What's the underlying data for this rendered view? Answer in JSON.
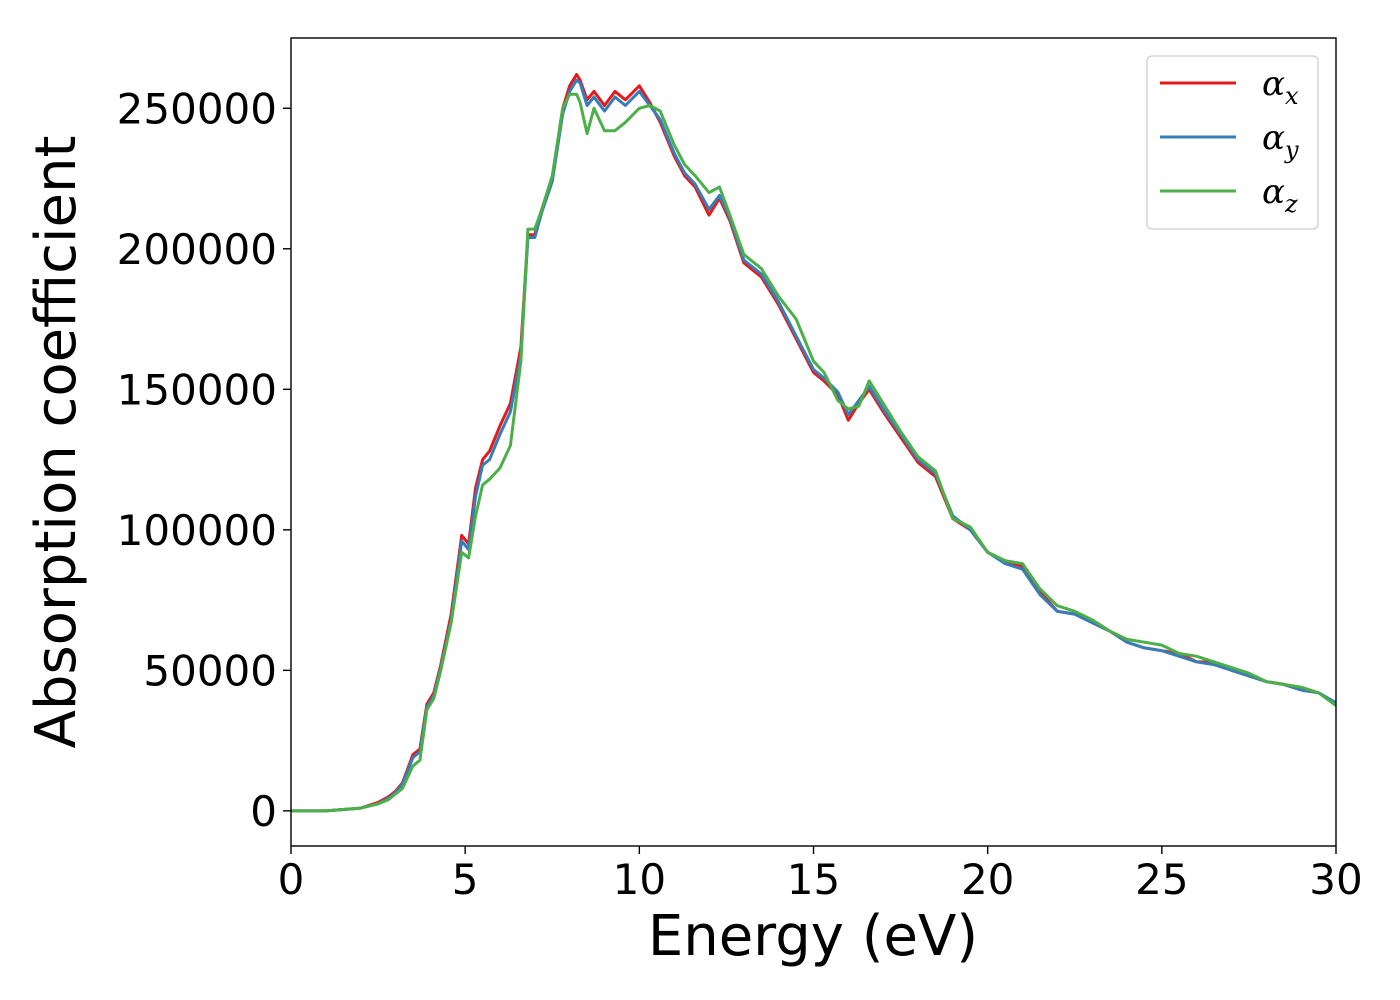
{
  "chart_data": {
    "type": "line",
    "xlabel": "Energy (eV)",
    "ylabel": "Absorption coefficient",
    "xlim": [
      0,
      30
    ],
    "ylim": [
      -12500,
      275000
    ],
    "x_ticks": [
      0,
      5,
      10,
      15,
      20,
      25,
      30
    ],
    "x_tick_labels": [
      "0",
      "5",
      "10",
      "15",
      "20",
      "25",
      "30"
    ],
    "y_ticks": [
      0,
      50000,
      100000,
      150000,
      200000,
      250000
    ],
    "y_tick_labels": [
      "0",
      "50000",
      "100000",
      "150000",
      "200000",
      "250000"
    ],
    "grid": false,
    "legend_position": "top-right",
    "series": [
      {
        "name": "α",
        "subscript": "x",
        "color": "#e41a1c",
        "x": [
          0,
          0.5,
          1,
          1.5,
          2,
          2.5,
          2.8,
          3,
          3.2,
          3.5,
          3.7,
          3.9,
          4.1,
          4.3,
          4.6,
          4.9,
          5.1,
          5.3,
          5.5,
          5.7,
          6,
          6.3,
          6.6,
          6.8,
          7,
          7.2,
          7.5,
          7.8,
          8,
          8.2,
          8.3,
          8.5,
          8.7,
          9,
          9.3,
          9.6,
          10,
          10.3,
          10.6,
          11,
          11.3,
          11.6,
          12,
          12.3,
          12.6,
          13,
          13.5,
          14,
          14.5,
          15,
          15.3,
          15.7,
          16,
          16.3,
          16.6,
          17,
          17.5,
          18,
          18.5,
          19,
          19.5,
          20,
          20.5,
          21,
          21.5,
          22,
          22.5,
          23,
          23.5,
          24,
          24.5,
          25,
          25.5,
          26,
          26.5,
          27,
          27.5,
          28,
          28.5,
          29,
          29.5,
          30
        ],
        "values": [
          0,
          0,
          0,
          500,
          1000,
          3000,
          5000,
          7000,
          10000,
          20000,
          22000,
          38000,
          42000,
          52000,
          70000,
          98000,
          95000,
          115000,
          125000,
          128000,
          137000,
          145000,
          165000,
          205000,
          205000,
          214000,
          225000,
          250000,
          258000,
          262000,
          260000,
          253000,
          256000,
          251000,
          256000,
          253000,
          258000,
          252000,
          245000,
          233000,
          226000,
          222000,
          212000,
          218000,
          210000,
          195000,
          190000,
          180000,
          168000,
          156000,
          153000,
          148000,
          139000,
          145000,
          150000,
          142000,
          133000,
          124000,
          119000,
          104000,
          100000,
          92000,
          89000,
          87000,
          78000,
          71000,
          70000,
          67000,
          64000,
          60000,
          58000,
          57000,
          56000,
          53000,
          53000,
          50000,
          48000,
          46000,
          45000,
          43000,
          42000,
          38000
        ]
      },
      {
        "name": "α",
        "subscript": "y",
        "color": "#377eb8",
        "x": [
          0,
          0.5,
          1,
          1.5,
          2,
          2.5,
          2.8,
          3,
          3.2,
          3.5,
          3.7,
          3.9,
          4.1,
          4.3,
          4.6,
          4.9,
          5.1,
          5.3,
          5.5,
          5.7,
          6,
          6.3,
          6.6,
          6.8,
          7,
          7.2,
          7.5,
          7.8,
          8,
          8.2,
          8.3,
          8.5,
          8.7,
          9,
          9.3,
          9.6,
          10,
          10.3,
          10.6,
          11,
          11.3,
          11.6,
          12,
          12.3,
          12.6,
          13,
          13.5,
          14,
          14.5,
          15,
          15.3,
          15.7,
          16,
          16.3,
          16.6,
          17,
          17.5,
          18,
          18.5,
          19,
          19.5,
          20,
          20.5,
          21,
          21.5,
          22,
          22.5,
          23,
          23.5,
          24,
          24.5,
          25,
          25.5,
          26,
          26.5,
          27,
          27.5,
          28,
          28.5,
          29,
          29.5,
          30
        ],
        "values": [
          0,
          0,
          0,
          500,
          1000,
          2500,
          4500,
          6500,
          9500,
          19000,
          21000,
          37000,
          41000,
          51000,
          68000,
          96000,
          93000,
          112000,
          123000,
          125000,
          134000,
          142000,
          162000,
          204000,
          204000,
          213000,
          224000,
          248000,
          256000,
          260000,
          259000,
          251000,
          254000,
          249000,
          254000,
          251000,
          256000,
          251000,
          246000,
          234000,
          227000,
          223000,
          214000,
          219000,
          211000,
          196000,
          191000,
          181000,
          169000,
          157000,
          154000,
          149000,
          141000,
          146000,
          151000,
          143000,
          134000,
          125000,
          120000,
          105000,
          100000,
          92000,
          88000,
          86000,
          77000,
          71000,
          70000,
          67000,
          64000,
          60000,
          58000,
          57000,
          55000,
          53000,
          52000,
          50000,
          48000,
          46000,
          45000,
          43000,
          42000,
          38500
        ]
      },
      {
        "name": "α",
        "subscript": "z",
        "color": "#4daf4a",
        "x": [
          0,
          0.5,
          1,
          1.5,
          2,
          2.5,
          2.8,
          3,
          3.2,
          3.5,
          3.7,
          3.9,
          4.1,
          4.3,
          4.6,
          4.9,
          5.1,
          5.3,
          5.5,
          5.7,
          6,
          6.3,
          6.6,
          6.8,
          7,
          7.2,
          7.5,
          7.8,
          8,
          8.2,
          8.3,
          8.5,
          8.7,
          9,
          9.3,
          9.6,
          10,
          10.3,
          10.6,
          11,
          11.3,
          11.6,
          12,
          12.3,
          12.6,
          13,
          13.5,
          14,
          14.5,
          15,
          15.3,
          15.7,
          16,
          16.3,
          16.6,
          17,
          17.5,
          18,
          18.5,
          19,
          19.5,
          20,
          20.5,
          21,
          21.5,
          22,
          22.5,
          23,
          23.5,
          24,
          24.5,
          25,
          25.5,
          26,
          26.5,
          27,
          27.5,
          28,
          28.5,
          29,
          29.5,
          30
        ],
        "values": [
          0,
          0,
          0,
          500,
          1000,
          2500,
          4000,
          6000,
          8000,
          16000,
          18000,
          36000,
          40000,
          50000,
          67000,
          92000,
          90000,
          105000,
          116000,
          118000,
          122000,
          130000,
          160000,
          207000,
          207000,
          214000,
          226000,
          250000,
          255000,
          255000,
          252000,
          241000,
          250000,
          242000,
          242000,
          245000,
          250000,
          251000,
          249000,
          237000,
          230000,
          226000,
          220000,
          222000,
          212000,
          198000,
          193000,
          183000,
          175000,
          160000,
          156000,
          146000,
          143000,
          144000,
          153000,
          145000,
          135000,
          126000,
          121000,
          104000,
          101000,
          92000,
          89000,
          88000,
          79000,
          73000,
          71000,
          68000,
          64000,
          61000,
          60000,
          59000,
          56000,
          55000,
          53000,
          51000,
          49000,
          46000,
          45000,
          44000,
          42000,
          37500
        ]
      }
    ]
  }
}
